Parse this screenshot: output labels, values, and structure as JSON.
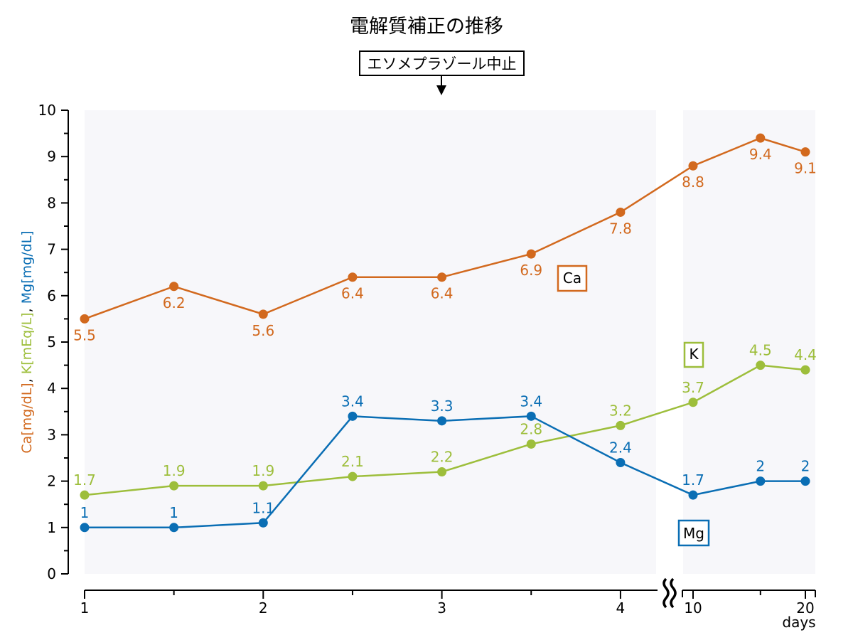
{
  "chart_data": {
    "type": "line",
    "title": "電解質補正の推移",
    "annotation": "エソメプラゾール中止",
    "ylabel_parts": [
      {
        "text": "Ca[mg/dL]",
        "color": "#d2691e"
      },
      {
        "text": ", ",
        "color": "#000000"
      },
      {
        "text": "K[mEq/L]",
        "color": "#9dbe3b"
      },
      {
        "text": ", ",
        "color": "#000000"
      },
      {
        "text": "Mg[mg/dL]",
        "color": "#0a6eb4"
      }
    ],
    "xlabel": "days",
    "ylim": [
      0,
      10
    ],
    "yticks": [
      "0",
      "1",
      "2",
      "3",
      "4",
      "5",
      "6",
      "7",
      "8",
      "9",
      "10"
    ],
    "xticks": [
      {
        "x": 1,
        "label": "1"
      },
      {
        "x": 2,
        "label": "2"
      },
      {
        "x": 3,
        "label": "3"
      },
      {
        "x": 4,
        "label": "4"
      },
      {
        "x": 10,
        "label": "10"
      },
      {
        "x": 20,
        "label": "20"
      }
    ],
    "x_axis_break": true,
    "grid": false,
    "series": [
      {
        "name": "Ca",
        "color": "#d2691e",
        "label_position": "below",
        "points": [
          {
            "x": 1,
            "y": 5.5,
            "label": "5.5"
          },
          {
            "x": 1.5,
            "y": 6.2,
            "label": "6.2"
          },
          {
            "x": 2,
            "y": 5.6,
            "label": "5.6"
          },
          {
            "x": 2.5,
            "y": 6.4,
            "label": "6.4"
          },
          {
            "x": 3,
            "y": 6.4,
            "label": "6.4"
          },
          {
            "x": 3.5,
            "y": 6.9,
            "label": "6.9"
          },
          {
            "x": 4,
            "y": 7.8,
            "label": "7.8"
          },
          {
            "x": 10,
            "y": 8.8,
            "label": "8.8"
          },
          {
            "x": 16,
            "y": 9.4,
            "label": "9.4"
          },
          {
            "x": 20,
            "y": 9.1,
            "label": "9.1"
          }
        ]
      },
      {
        "name": "K",
        "color": "#9dbe3b",
        "label_position": "above",
        "points": [
          {
            "x": 1,
            "y": 1.7,
            "label": "1.7"
          },
          {
            "x": 1.5,
            "y": 1.9,
            "label": "1.9"
          },
          {
            "x": 2,
            "y": 1.9,
            "label": "1.9"
          },
          {
            "x": 2.5,
            "y": 2.1,
            "label": "2.1"
          },
          {
            "x": 3,
            "y": 2.2,
            "label": "2.2"
          },
          {
            "x": 3.5,
            "y": 2.8,
            "label": "2.8"
          },
          {
            "x": 4,
            "y": 3.2,
            "label": "3.2"
          },
          {
            "x": 10,
            "y": 3.7,
            "label": "3.7"
          },
          {
            "x": 16,
            "y": 4.5,
            "label": "4.5"
          },
          {
            "x": 20,
            "y": 4.4,
            "label": "4.4"
          }
        ]
      },
      {
        "name": "Mg",
        "color": "#0a6eb4",
        "label_position": "above",
        "points": [
          {
            "x": 1,
            "y": 1,
            "label": "1"
          },
          {
            "x": 1.5,
            "y": 1,
            "label": "1"
          },
          {
            "x": 2,
            "y": 1.1,
            "label": "1.1"
          },
          {
            "x": 2.5,
            "y": 3.4,
            "label": "3.4"
          },
          {
            "x": 3,
            "y": 3.3,
            "label": "3.3"
          },
          {
            "x": 3.5,
            "y": 3.4,
            "label": "3.4"
          },
          {
            "x": 4,
            "y": 2.4,
            "label": "2.4"
          },
          {
            "x": 10,
            "y": 1.7,
            "label": "1.7"
          },
          {
            "x": 16,
            "y": 2,
            "label": "2"
          },
          {
            "x": 20,
            "y": 2,
            "label": "2"
          }
        ]
      }
    ]
  }
}
